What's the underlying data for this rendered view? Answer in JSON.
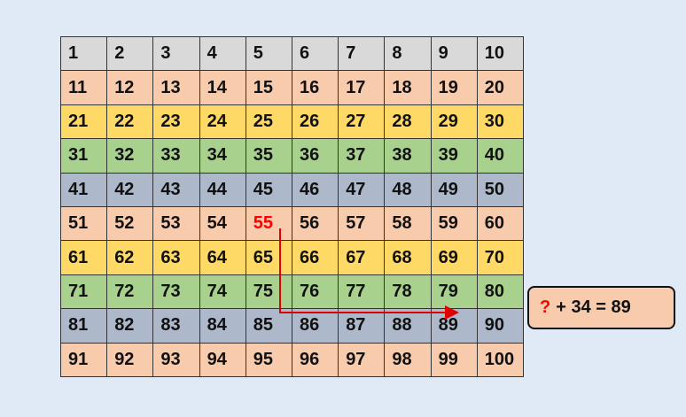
{
  "table": {
    "rows": [
      [
        "1",
        "2",
        "3",
        "4",
        "5",
        "6",
        "7",
        "8",
        "9",
        "10"
      ],
      [
        "11",
        "12",
        "13",
        "14",
        "15",
        "16",
        "17",
        "18",
        "19",
        "20"
      ],
      [
        "21",
        "22",
        "23",
        "24",
        "25",
        "26",
        "27",
        "28",
        "29",
        "30"
      ],
      [
        "31",
        "32",
        "33",
        "34",
        "35",
        "36",
        "37",
        "38",
        "39",
        "40"
      ],
      [
        "41",
        "42",
        "43",
        "44",
        "45",
        "46",
        "47",
        "48",
        "49",
        "50"
      ],
      [
        "51",
        "52",
        "53",
        "54",
        "55",
        "56",
        "57",
        "58",
        "59",
        "60"
      ],
      [
        "61",
        "62",
        "63",
        "64",
        "65",
        "66",
        "67",
        "68",
        "69",
        "70"
      ],
      [
        "71",
        "72",
        "73",
        "74",
        "75",
        "76",
        "77",
        "78",
        "79",
        "80"
      ],
      [
        "81",
        "82",
        "83",
        "84",
        "85",
        "86",
        "87",
        "88",
        "89",
        "90"
      ],
      [
        "91",
        "92",
        "93",
        "94",
        "95",
        "96",
        "97",
        "98",
        "99",
        "100"
      ]
    ],
    "row_colors": [
      "#d9d9d9",
      "#f8cbad",
      "#ffd966",
      "#a9d18e",
      "#adb9ca",
      "#f8cbad",
      "#ffd966",
      "#a9d18e",
      "#adb9ca",
      "#f8cbad"
    ],
    "highlight": {
      "row": 5,
      "column": 4,
      "color": "#ff0000"
    }
  },
  "callout": {
    "question": "?",
    "equation": "+ 34 = 89"
  }
}
